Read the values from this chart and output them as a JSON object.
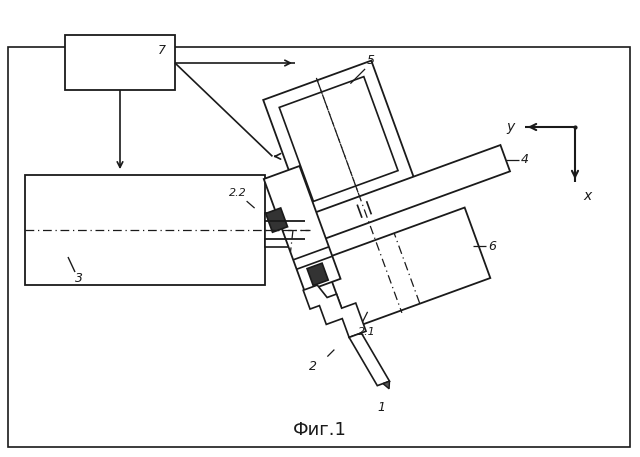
{
  "background_color": "#ffffff",
  "line_color": "#1a1a1a",
  "title": "Фиг.1",
  "title_fontsize": 13,
  "fig_width": 6.4,
  "fig_height": 4.57
}
